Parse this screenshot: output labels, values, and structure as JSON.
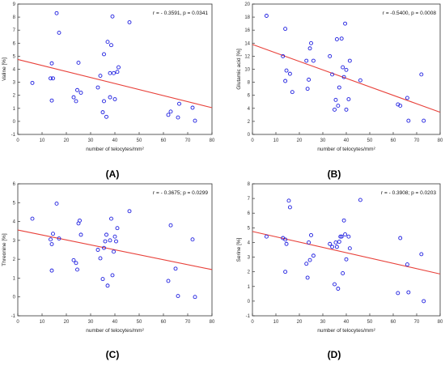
{
  "figure_labels": [
    "(A)",
    "(B)",
    "(C)",
    "(D)"
  ],
  "chart_data": [
    {
      "panel": "(A)",
      "type": "scatter",
      "title": "",
      "annotation": "r = - 0.3591, p = 0.0341",
      "xlabel": "number of telocytes/mm²",
      "ylabel": "Valine [%]",
      "xlim": [
        0,
        80
      ],
      "ylim": [
        -1,
        9
      ],
      "xticks": [
        0,
        10,
        20,
        30,
        40,
        50,
        60,
        70,
        80
      ],
      "yticks": [
        -1,
        0,
        1,
        2,
        3,
        4,
        5,
        6,
        7,
        8,
        9
      ],
      "grid": false,
      "points": [
        [
          6,
          2.95
        ],
        [
          13.5,
          3.3
        ],
        [
          14.5,
          3.3
        ],
        [
          14,
          1.6
        ],
        [
          14,
          4.45
        ],
        [
          16,
          8.3
        ],
        [
          17,
          6.8
        ],
        [
          23,
          1.85
        ],
        [
          24,
          1.55
        ],
        [
          24.5,
          2.4
        ],
        [
          25,
          4.5
        ],
        [
          26,
          2.2
        ],
        [
          33,
          2.6
        ],
        [
          34,
          3.5
        ],
        [
          35,
          0.7
        ],
        [
          35.5,
          1.55
        ],
        [
          35.5,
          5.15
        ],
        [
          36.5,
          0.35
        ],
        [
          37,
          6.1
        ],
        [
          38,
          3.7
        ],
        [
          38,
          1.85
        ],
        [
          38.5,
          5.85
        ],
        [
          39,
          8.05
        ],
        [
          39.5,
          3.7
        ],
        [
          40,
          1.7
        ],
        [
          41,
          3.8
        ],
        [
          41.5,
          4.15
        ],
        [
          46,
          7.6
        ],
        [
          62,
          0.5
        ],
        [
          63,
          0.75
        ],
        [
          66,
          0.3
        ],
        [
          66.5,
          1.35
        ],
        [
          72,
          1.05
        ],
        [
          73,
          0.05
        ]
      ],
      "trendline": {
        "x": [
          0,
          80
        ],
        "y": [
          4.75,
          1.05
        ],
        "color": "#e8413a"
      }
    },
    {
      "panel": "(B)",
      "type": "scatter",
      "title": "",
      "annotation": "r = -0.5400, p = 0.0008",
      "xlabel": "number of telocytes/mm²",
      "ylabel": "Glutamic acid [%]",
      "xlim": [
        0,
        80
      ],
      "ylim": [
        0,
        20
      ],
      "xticks": [
        0,
        10,
        20,
        30,
        40,
        50,
        60,
        70,
        80
      ],
      "yticks": [
        0,
        2,
        4,
        6,
        8,
        10,
        12,
        14,
        16,
        18,
        20
      ],
      "grid": false,
      "points": [
        [
          6,
          18.2
        ],
        [
          13,
          12
        ],
        [
          14,
          8.2
        ],
        [
          14,
          16.2
        ],
        [
          14.5,
          9.8
        ],
        [
          16,
          9.3
        ],
        [
          17,
          6.5
        ],
        [
          23,
          11.3
        ],
        [
          23.5,
          7
        ],
        [
          24,
          8.4
        ],
        [
          24.5,
          13.2
        ],
        [
          25,
          14
        ],
        [
          26,
          11.3
        ],
        [
          33,
          12
        ],
        [
          34,
          9.2
        ],
        [
          35,
          3.8
        ],
        [
          35.5,
          5.3
        ],
        [
          36,
          14.6
        ],
        [
          36.5,
          4.4
        ],
        [
          37,
          7.2
        ],
        [
          38,
          14.7
        ],
        [
          38.5,
          10.3
        ],
        [
          39,
          8.8
        ],
        [
          39.5,
          17
        ],
        [
          40,
          9.9
        ],
        [
          40,
          3.8
        ],
        [
          41,
          5.4
        ],
        [
          41.5,
          11.3
        ],
        [
          46,
          8.3
        ],
        [
          62,
          4.6
        ],
        [
          63,
          4.4
        ],
        [
          66,
          5.6
        ],
        [
          66.5,
          2.1
        ],
        [
          72,
          9.2
        ],
        [
          73,
          2.1
        ]
      ],
      "trendline": {
        "x": [
          0,
          80
        ],
        "y": [
          13.8,
          3.4
        ],
        "color": "#e8413a"
      }
    },
    {
      "panel": "(C)",
      "type": "scatter",
      "title": "",
      "annotation": "r = - 0.3675; p = 0.0299",
      "xlabel": "number of telocytes/mm²",
      "ylabel": "Threonine [%]",
      "xlim": [
        0,
        80
      ],
      "ylim": [
        -1,
        6
      ],
      "xticks": [
        0,
        10,
        20,
        30,
        40,
        50,
        60,
        70,
        80
      ],
      "yticks": [
        -1,
        0,
        1,
        2,
        3,
        4,
        5,
        6
      ],
      "grid": false,
      "points": [
        [
          6,
          4.15
        ],
        [
          13.5,
          3.05
        ],
        [
          14,
          2.8
        ],
        [
          14,
          1.4
        ],
        [
          14.5,
          3.35
        ],
        [
          16,
          4.95
        ],
        [
          17,
          3.1
        ],
        [
          23,
          1.95
        ],
        [
          24,
          1.8
        ],
        [
          24.5,
          1.45
        ],
        [
          25,
          3.9
        ],
        [
          25.5,
          4.05
        ],
        [
          26,
          3.3
        ],
        [
          33,
          2.5
        ],
        [
          34,
          2.05
        ],
        [
          35,
          0.95
        ],
        [
          35.5,
          2.6
        ],
        [
          36,
          2.95
        ],
        [
          36.5,
          3.3
        ],
        [
          37,
          0.6
        ],
        [
          38,
          3.0
        ],
        [
          38.5,
          4.15
        ],
        [
          39,
          1.15
        ],
        [
          39.5,
          2.4
        ],
        [
          40,
          3.2
        ],
        [
          40.5,
          2.95
        ],
        [
          41,
          3.65
        ],
        [
          46,
          4.55
        ],
        [
          62,
          0.85
        ],
        [
          63,
          3.8
        ],
        [
          65,
          1.5
        ],
        [
          66,
          0.05
        ],
        [
          72,
          3.05
        ],
        [
          73,
          0.0
        ]
      ],
      "trendline": {
        "x": [
          0,
          80
        ],
        "y": [
          3.55,
          1.45
        ],
        "color": "#e8413a"
      }
    },
    {
      "panel": "(D)",
      "type": "scatter",
      "title": "",
      "annotation": "r = - 0.3908; p = 0.0203",
      "xlabel": "number of telocytes/mm²",
      "ylabel": "Serine [%]",
      "xlim": [
        0,
        80
      ],
      "ylim": [
        -1,
        8
      ],
      "xticks": [
        0,
        10,
        20,
        30,
        40,
        50,
        60,
        70,
        80
      ],
      "yticks": [
        -1,
        0,
        1,
        2,
        3,
        4,
        5,
        6,
        7,
        8
      ],
      "grid": false,
      "points": [
        [
          6,
          4.4
        ],
        [
          13,
          4.3
        ],
        [
          14,
          4.2
        ],
        [
          14,
          2.0
        ],
        [
          14.5,
          3.9
        ],
        [
          15.5,
          6.85
        ],
        [
          16,
          6.4
        ],
        [
          23,
          2.55
        ],
        [
          23.5,
          1.6
        ],
        [
          24,
          4.0
        ],
        [
          24.5,
          2.8
        ],
        [
          25,
          4.5
        ],
        [
          26,
          3.1
        ],
        [
          33,
          3.9
        ],
        [
          34,
          3.7
        ],
        [
          35,
          1.15
        ],
        [
          35.5,
          4.0
        ],
        [
          36,
          3.7
        ],
        [
          36.5,
          0.85
        ],
        [
          37,
          4.05
        ],
        [
          37.5,
          4.4
        ],
        [
          38,
          4.4
        ],
        [
          38.5,
          1.9
        ],
        [
          39,
          5.5
        ],
        [
          39.5,
          4.55
        ],
        [
          40,
          2.85
        ],
        [
          41,
          4.4
        ],
        [
          41.5,
          3.6
        ],
        [
          46,
          6.9
        ],
        [
          62,
          0.55
        ],
        [
          63,
          4.3
        ],
        [
          66,
          2.5
        ],
        [
          66.5,
          0.6
        ],
        [
          72,
          3.2
        ],
        [
          73,
          0.0
        ]
      ],
      "trendline": {
        "x": [
          0,
          80
        ],
        "y": [
          4.75,
          1.85
        ],
        "color": "#e8413a"
      }
    }
  ],
  "style": {
    "point_color": "#1f1fe0",
    "trend_color": "#e8413a",
    "axis_color": "#333333"
  }
}
